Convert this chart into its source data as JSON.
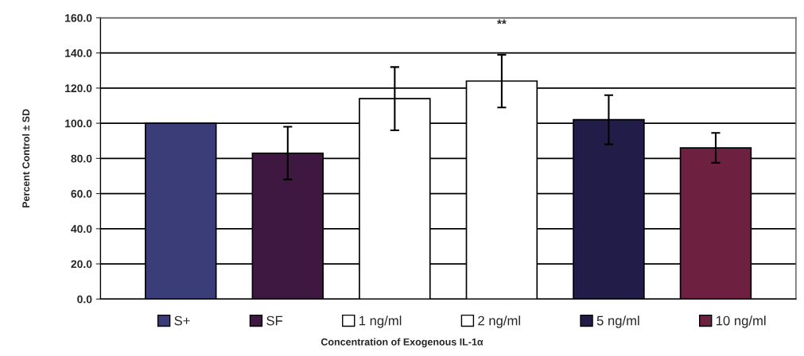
{
  "chart_data": {
    "type": "bar",
    "categories": [
      null,
      null,
      null,
      null,
      null,
      null
    ],
    "series": [
      {
        "name": "S+",
        "color": "#3b3d78",
        "values": [
          100,
          null,
          null,
          null,
          null,
          null
        ],
        "errors": [
          null,
          null,
          null,
          null,
          null,
          null
        ]
      },
      {
        "name": "SF",
        "color": "#3e1840",
        "values": [
          null,
          83,
          null,
          null,
          null,
          null
        ],
        "errors": [
          null,
          15,
          null,
          null,
          null,
          null
        ]
      },
      {
        "name": "1 ng/ml",
        "color": "#ffffff",
        "values": [
          null,
          null,
          114,
          null,
          null,
          null
        ],
        "errors": [
          null,
          null,
          18,
          null,
          null,
          null
        ]
      },
      {
        "name": "2 ng/ml",
        "color": "#ffffff",
        "values": [
          null,
          null,
          null,
          124,
          null,
          null
        ],
        "errors": [
          null,
          null,
          null,
          15,
          null,
          null
        ]
      },
      {
        "name": "5 ng/ml",
        "color": "#221c48",
        "values": [
          null,
          null,
          null,
          null,
          102,
          null
        ],
        "errors": [
          null,
          null,
          null,
          null,
          14,
          null
        ]
      },
      {
        "name": "10 ng/ml",
        "color": "#6e2040",
        "values": [
          null,
          null,
          null,
          null,
          null,
          86
        ],
        "errors": [
          null,
          null,
          null,
          null,
          null,
          8.5
        ]
      }
    ],
    "ylabel": "Percent Control ± SD",
    "xlabel": "Concentration of Exogenous IL-1α",
    "ylim": [
      0,
      160
    ],
    "yticks": [
      {
        "value": 0,
        "label": "0.0"
      },
      {
        "value": 20,
        "label": "20.0"
      },
      {
        "value": 40,
        "label": "40.0"
      },
      {
        "value": 60,
        "label": "60.0"
      },
      {
        "value": 80,
        "label": "80.0"
      },
      {
        "value": 100,
        "label": "100.0"
      },
      {
        "value": 120,
        "label": "120.0"
      },
      {
        "value": 140,
        "label": "140.0"
      },
      {
        "value": 160,
        "label": "160.0"
      }
    ],
    "annotations": [
      "**"
    ],
    "grid": "y",
    "legend": "bottom"
  }
}
